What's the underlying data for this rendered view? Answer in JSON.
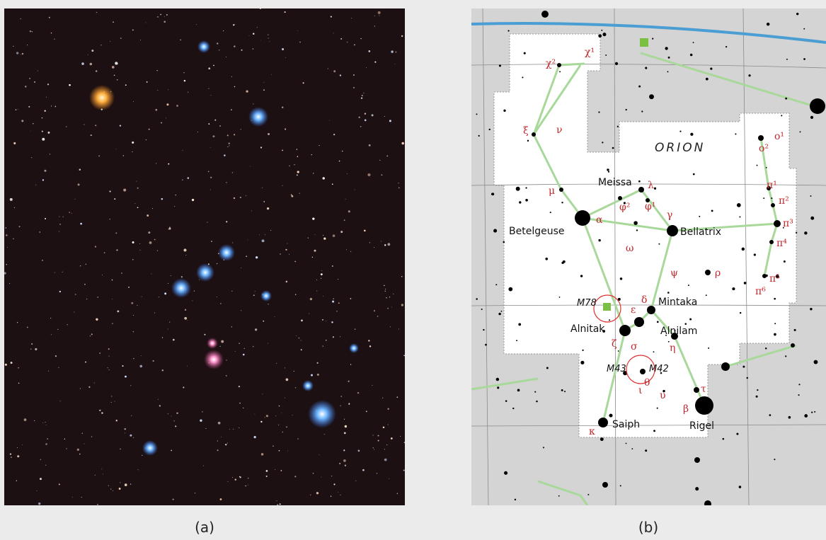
{
  "panels": [
    {
      "caption": "(a)"
    },
    {
      "caption": "(b)",
      "constellation": "ORION",
      "star_names": [
        "Meissa",
        "Betelgeuse",
        "Bellatrix",
        "Mintaka",
        "Alnitak",
        "Alnilam",
        "Saiph",
        "Rigel"
      ],
      "objects": [
        "M78",
        "M43",
        "M42"
      ],
      "greek_labels": [
        "χ²",
        "χ¹",
        "ξ",
        "ν",
        "ο²",
        "ο¹",
        "λ",
        "φ²",
        "φ¹",
        "μ",
        "α",
        "γ",
        "π¹",
        "π²",
        "π³",
        "π⁴",
        "ω",
        "ψ",
        "ρ",
        "π⁵",
        "π⁶",
        "δ",
        "ε",
        "ζ",
        "σ",
        "η",
        "θ",
        "ι",
        "υ",
        "τ",
        "β",
        "κ"
      ]
    }
  ]
}
